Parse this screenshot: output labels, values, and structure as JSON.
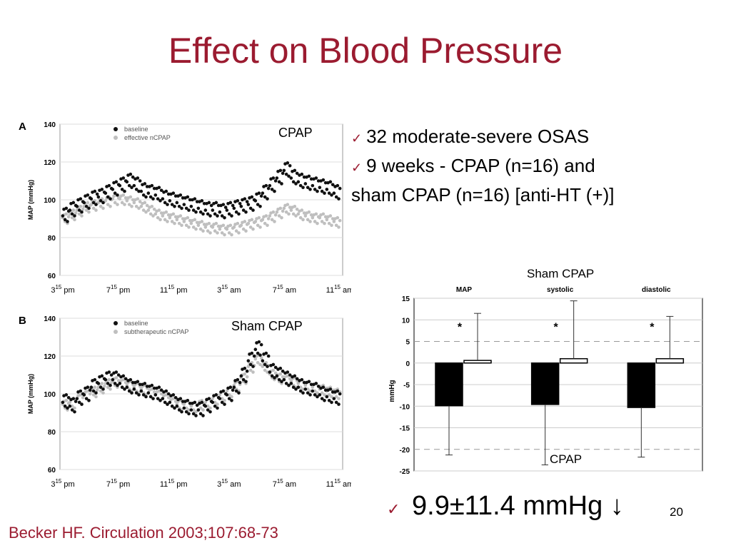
{
  "slide": {
    "title": "Effect on Blood Pressure",
    "bullets": [
      "32 moderate-severe OSAS",
      "9 weeks - CPAP (n=16) and",
      "sham CPAP (n=16) [anti-HT (+)]"
    ],
    "result": "9.9±11.4 mmHg",
    "result_arrow": "↓",
    "page_number": "20",
    "citation": "Becker HF. Circulation 2003;107:68-73",
    "labels": {
      "cpap_a": "CPAP",
      "sham_b": "Sham CPAP",
      "sham_bar": "Sham CPAP",
      "cpap_bar": "CPAP"
    },
    "colors": {
      "title": "#9b1b30",
      "baseline": "#111111",
      "treatment": "#bfbfbf"
    }
  },
  "chart_data": [
    {
      "type": "scatter",
      "panel": "A",
      "ylabel": "MAP (mmHg)",
      "ylim": [
        60,
        140
      ],
      "yticks": [
        "140",
        "120",
        "100",
        "80",
        "60"
      ],
      "xticks": [
        {
          "h": "3",
          "sup": "15",
          "ap": "pm"
        },
        {
          "h": "7",
          "sup": "15",
          "ap": "pm"
        },
        {
          "h": "11",
          "sup": "15",
          "ap": "pm"
        },
        {
          "h": "3",
          "sup": "15",
          "ap": "am"
        },
        {
          "h": "7",
          "sup": "15",
          "ap": "am"
        },
        {
          "h": "11",
          "sup": "15",
          "ap": "am"
        }
      ],
      "grid": true,
      "legend_position": "top-left",
      "series": [
        {
          "name": "baseline",
          "color": "#111111",
          "values": [
            92,
            95,
            97,
            99,
            101,
            102,
            104,
            106,
            108,
            110,
            108,
            105,
            104,
            103,
            101,
            100,
            99,
            98,
            97,
            96,
            95,
            95,
            94,
            95,
            96,
            97,
            98,
            100,
            104,
            108,
            112,
            116,
            112,
            110,
            109,
            108,
            107,
            106,
            104
          ]
        },
        {
          "name": "effective nCPAP",
          "color": "#bfbfbf",
          "values": [
            90,
            92,
            94,
            96,
            97,
            98,
            99,
            100,
            100,
            99,
            98,
            96,
            94,
            92,
            91,
            90,
            89,
            88,
            87,
            86,
            85,
            85,
            84,
            84,
            85,
            86,
            87,
            88,
            89,
            91,
            93,
            95,
            94,
            92,
            91,
            90,
            90,
            89,
            88
          ]
        }
      ]
    },
    {
      "type": "scatter",
      "panel": "B",
      "ylabel": "MAP (mmHg)",
      "ylim": [
        60,
        140
      ],
      "yticks": [
        "140",
        "120",
        "100",
        "80",
        "60"
      ],
      "xticks": [
        {
          "h": "3",
          "sup": "15",
          "ap": "pm"
        },
        {
          "h": "7",
          "sup": "15",
          "ap": "pm"
        },
        {
          "h": "11",
          "sup": "15",
          "ap": "pm"
        },
        {
          "h": "3",
          "sup": "15",
          "ap": "am"
        },
        {
          "h": "7",
          "sup": "15",
          "ap": "am"
        },
        {
          "h": "11",
          "sup": "15",
          "ap": "am"
        }
      ],
      "grid": true,
      "legend_position": "top-left",
      "series": [
        {
          "name": "baseline",
          "color": "#111111",
          "values": [
            96,
            94,
            98,
            100,
            104,
            106,
            108,
            108,
            106,
            104,
            103,
            102,
            101,
            100,
            98,
            96,
            94,
            93,
            92,
            92,
            94,
            96,
            98,
            100,
            104,
            110,
            118,
            124,
            118,
            112,
            110,
            108,
            106,
            104,
            103,
            102,
            100,
            99,
            98
          ]
        },
        {
          "name": "subtherapeutic nCPAP",
          "color": "#bfbfbf",
          "values": [
            94,
            95,
            97,
            99,
            101,
            103,
            105,
            106,
            105,
            104,
            103,
            102,
            100,
            99,
            97,
            95,
            94,
            94,
            93,
            94,
            95,
            97,
            99,
            101,
            104,
            108,
            114,
            118,
            114,
            110,
            108,
            107,
            106,
            105,
            104,
            103,
            102,
            101,
            100
          ]
        }
      ]
    },
    {
      "type": "bar",
      "ylabel": "mmHg",
      "ylim": [
        -25,
        15
      ],
      "yticks": [
        "15",
        "10",
        "5",
        "0",
        "-5",
        "-10",
        "-15",
        "-20",
        "-25"
      ],
      "categories": [
        "MAP",
        "systolic",
        "diastolic"
      ],
      "significance": [
        "*",
        "*",
        "*"
      ],
      "grid": true,
      "series": [
        {
          "name": "CPAP",
          "color": "#000000",
          "values": [
            -9.9,
            -9.6,
            -10.3
          ],
          "sd": [
            11.4,
            14.0,
            11.5
          ]
        },
        {
          "name": "Sham CPAP",
          "color": "#ffffff",
          "values": [
            0.6,
            1.0,
            1.0
          ],
          "sd": [
            10.9,
            13.4,
            9.8
          ]
        }
      ]
    }
  ]
}
